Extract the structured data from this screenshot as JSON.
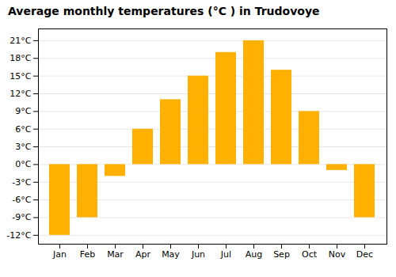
{
  "chart_data": {
    "type": "bar",
    "title": "Average monthly temperatures (°C ) in Trudovoye",
    "categories": [
      "Jan",
      "Feb",
      "Mar",
      "Apr",
      "May",
      "Jun",
      "Jul",
      "Aug",
      "Sep",
      "Oct",
      "Nov",
      "Dec"
    ],
    "values": [
      -12,
      -9,
      -2,
      6,
      11,
      15,
      19,
      21,
      16,
      9,
      -1,
      -9
    ],
    "color": "#FFB000",
    "ylim": [
      -13.5,
      23
    ],
    "yticks": [
      {
        "value": -12,
        "label": "-12°C"
      },
      {
        "value": -9,
        "label": "-9°C"
      },
      {
        "value": -6,
        "label": "-6°C"
      },
      {
        "value": -3,
        "label": "-3°C"
      },
      {
        "value": 0,
        "label": "0°C"
      },
      {
        "value": 3,
        "label": "3°C"
      },
      {
        "value": 6,
        "label": "6°C"
      },
      {
        "value": 9,
        "label": "9°C"
      },
      {
        "value": 12,
        "label": "12°C"
      },
      {
        "value": 15,
        "label": "15°C"
      },
      {
        "value": 18,
        "label": "18°C"
      },
      {
        "value": 21,
        "label": "21°C"
      }
    ],
    "grid": true
  }
}
